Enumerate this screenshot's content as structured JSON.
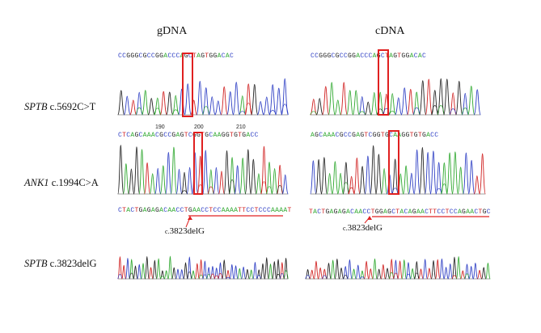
{
  "columns": {
    "left": "gDNA",
    "right": "cDNA"
  },
  "rows": [
    {
      "gene": "SPTB",
      "variant": "c.5692C>T"
    },
    {
      "gene": "ANK1",
      "variant": "c.1994C>A"
    },
    {
      "gene": "SPTB",
      "variant": "c.3823delG"
    }
  ],
  "sequences": {
    "r1_left": "CCGGGCGCCGGACCCAGCTAGTGGACAC",
    "r1_right": "CCGGGCGCCGGACCCAGCTAGTGGACAC",
    "r2_left": "CTCAGCAAACGCCGAGTCGGTGCAAGGTGTGACC",
    "r2_right": "AGCAAACGCCGAGTCGGTGCAAGGTGTGACC",
    "r3_left": "CTACTGAGAGACAACCTGAACCTCCAAAATTCCTCCCAAAAT",
    "r3_right": "TACTGAGAGACAACCTGGAGCTACAGAACTTCCTCCAGAACTGC"
  },
  "ticks": [
    "190",
    "200",
    "210"
  ],
  "annotations": {
    "left": {
      "prefix": "c.",
      "rest": "3823delG"
    },
    "right": {
      "prefix": "c.",
      "rest": "3823delG"
    }
  },
  "colors": {
    "A": "#2fa82f",
    "C": "#2e3fc4",
    "G": "#222222",
    "T": "#d02020",
    "highlight": "#e02020"
  }
}
